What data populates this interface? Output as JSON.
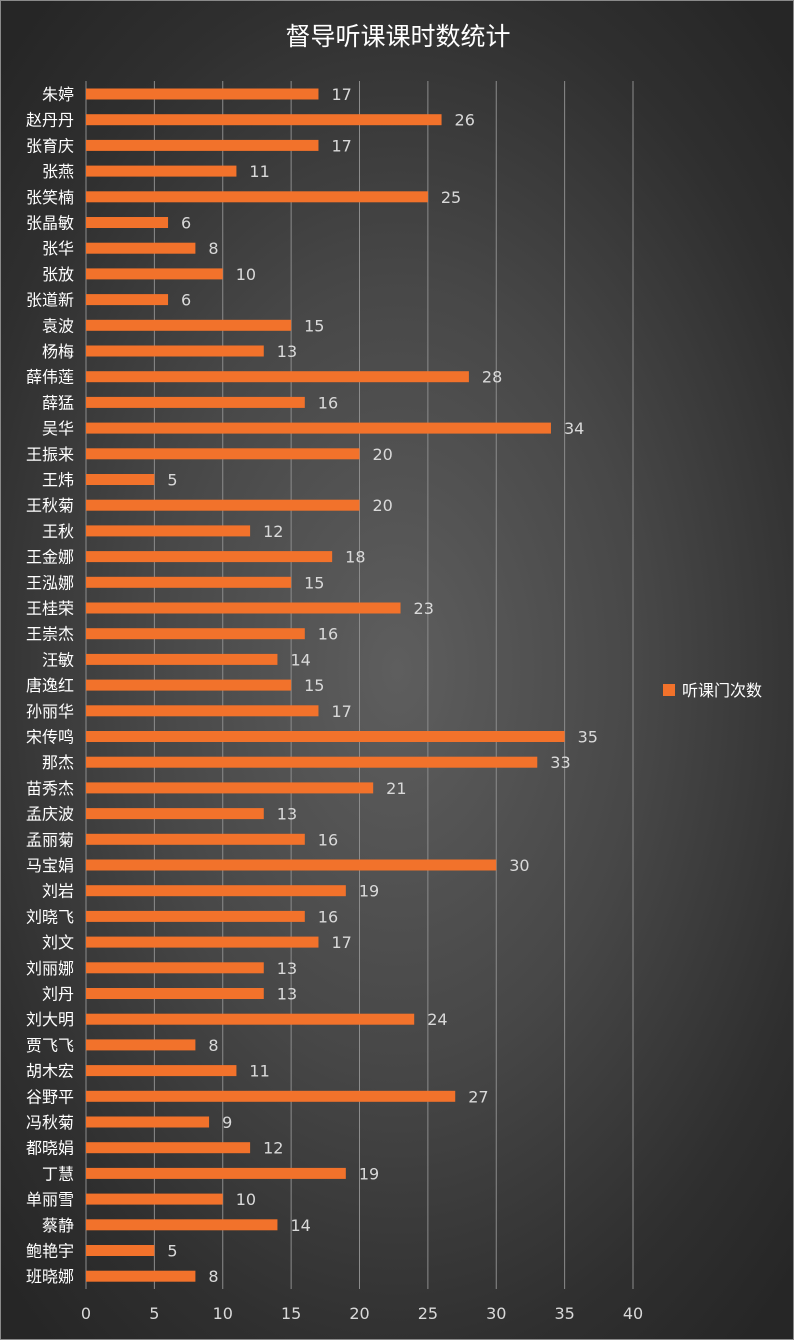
{
  "chart_data": {
    "type": "bar",
    "orientation": "horizontal",
    "title": "督导听课课时数统计",
    "xlabel": "",
    "ylabel": "",
    "xlim": [
      0,
      40
    ],
    "ticks": [
      0,
      5,
      10,
      15,
      20,
      25,
      30,
      35,
      40
    ],
    "grid": true,
    "legend_position": "right",
    "bar_color": "#f2722b",
    "categories": [
      "朱婷",
      "赵丹丹",
      "张育庆",
      "张燕",
      "张笑楠",
      "张晶敏",
      "张华",
      "张放",
      "张道新",
      "袁波",
      "杨梅",
      "薛伟莲",
      "薛猛",
      "吴华",
      "王振来",
      "王炜",
      "王秋菊",
      "王秋",
      "王金娜",
      "王泓娜",
      "王桂荣",
      "王崇杰",
      "汪敏",
      "唐逸红",
      "孙丽华",
      "宋传鸣",
      "那杰",
      "苗秀杰",
      "孟庆波",
      "孟丽菊",
      "马宝娟",
      "刘岩",
      "刘晓飞",
      "刘文",
      "刘丽娜",
      "刘丹",
      "刘大明",
      "贾飞飞",
      "胡木宏",
      "谷野平",
      "冯秋菊",
      "都晓娟",
      "丁慧",
      "单丽雪",
      "蔡静",
      "鲍艳宇",
      "班晓娜"
    ],
    "series": [
      {
        "name": "听课门次数",
        "values": [
          17,
          26,
          17,
          11,
          25,
          6,
          8,
          10,
          6,
          15,
          13,
          28,
          16,
          34,
          20,
          5,
          20,
          12,
          18,
          15,
          23,
          16,
          14,
          15,
          17,
          35,
          33,
          21,
          13,
          16,
          30,
          19,
          16,
          17,
          13,
          13,
          24,
          8,
          11,
          27,
          9,
          12,
          19,
          10,
          14,
          5,
          8
        ]
      }
    ]
  }
}
